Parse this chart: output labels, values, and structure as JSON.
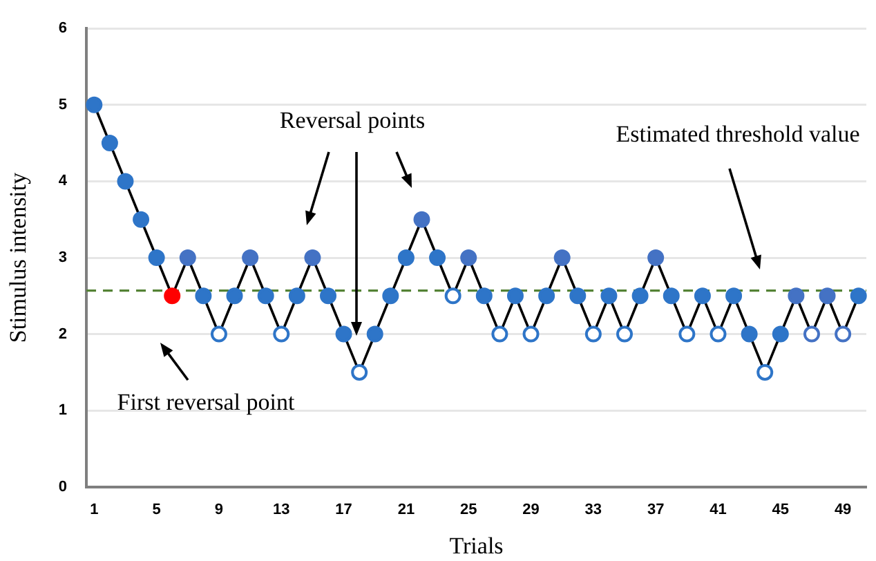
{
  "chart_data": {
    "type": "line",
    "xlabel": "Trials",
    "ylabel": "Stimulus intensity",
    "categories": [
      "1",
      null,
      null,
      null,
      "5",
      null,
      null,
      null,
      "9",
      null,
      null,
      null,
      "13",
      null,
      null,
      null,
      "17",
      null,
      null,
      null,
      "21",
      null,
      null,
      null,
      "25",
      null,
      null,
      null,
      "29",
      null,
      null,
      null,
      "33",
      null,
      null,
      null,
      "37",
      null,
      null,
      null,
      "41",
      null,
      null,
      null,
      "45",
      null,
      null,
      null,
      "49",
      null
    ],
    "series": [
      {
        "color": "#000000",
        "values": [
          5,
          4.5,
          4,
          3.5,
          3,
          2.5,
          3,
          2.5,
          2,
          2.5,
          3,
          2.5,
          2,
          2.5,
          3,
          2.5,
          2,
          1.5,
          2,
          2.5,
          3,
          3.5,
          3,
          2.5,
          3,
          2.5,
          2,
          2.5,
          2,
          2.5,
          3,
          2.5,
          2,
          2.5,
          2,
          2.5,
          3,
          2.5,
          2,
          2.5,
          2,
          2.5,
          2,
          1.5,
          2,
          2.5,
          2,
          2.5,
          2,
          2.5
        ],
        "colors": [
          "#2e75c8",
          "#2e75c8",
          "#2e75c8",
          "#2e75c8",
          "#2e75c8",
          "#ff0000",
          "#4472c4",
          "#2e75c8",
          "#ffffff",
          "#2e75c8",
          "#4472c4",
          "#2e75c8",
          "#ffffff",
          "#2e75c8",
          "#4472c4",
          "#2e75c8",
          "#2e75c8",
          "#ffffff",
          "#2e75c8",
          "#2e75c8",
          "#2e75c8",
          "#4472c4",
          "#2e75c8",
          "#ffffff",
          "#4472c4",
          "#2e75c8",
          "#ffffff",
          "#2e75c8",
          "#ffffff",
          "#2e75c8",
          "#4472c4",
          "#2e75c8",
          "#ffffff",
          "#2e75c8",
          "#ffffff",
          "#2e75c8",
          "#4472c4",
          "#2e75c8",
          "#ffffff",
          "#2e75c8",
          "#ffffff",
          "#2e75c8",
          "#2e75c8",
          "#ffffff",
          "#2e75c8",
          "#4472c4",
          "#ffffff",
          "#4472c4",
          "#ffffff",
          "#2e75c8"
        ]
      }
    ],
    "ylim": [
      0,
      6
    ],
    "yticks": [
      0,
      1,
      2,
      3,
      4,
      5,
      6
    ],
    "grid": "y",
    "legend": false,
    "marker": "circle",
    "line_style": "solid",
    "ref_lines": [
      {
        "axis": "y",
        "value": 2.57,
        "color": "#548235",
        "line_style": "dashed"
      }
    ],
    "annotations": [
      "Reversal points",
      "Estimated threshold value",
      "First reversal point"
    ]
  }
}
